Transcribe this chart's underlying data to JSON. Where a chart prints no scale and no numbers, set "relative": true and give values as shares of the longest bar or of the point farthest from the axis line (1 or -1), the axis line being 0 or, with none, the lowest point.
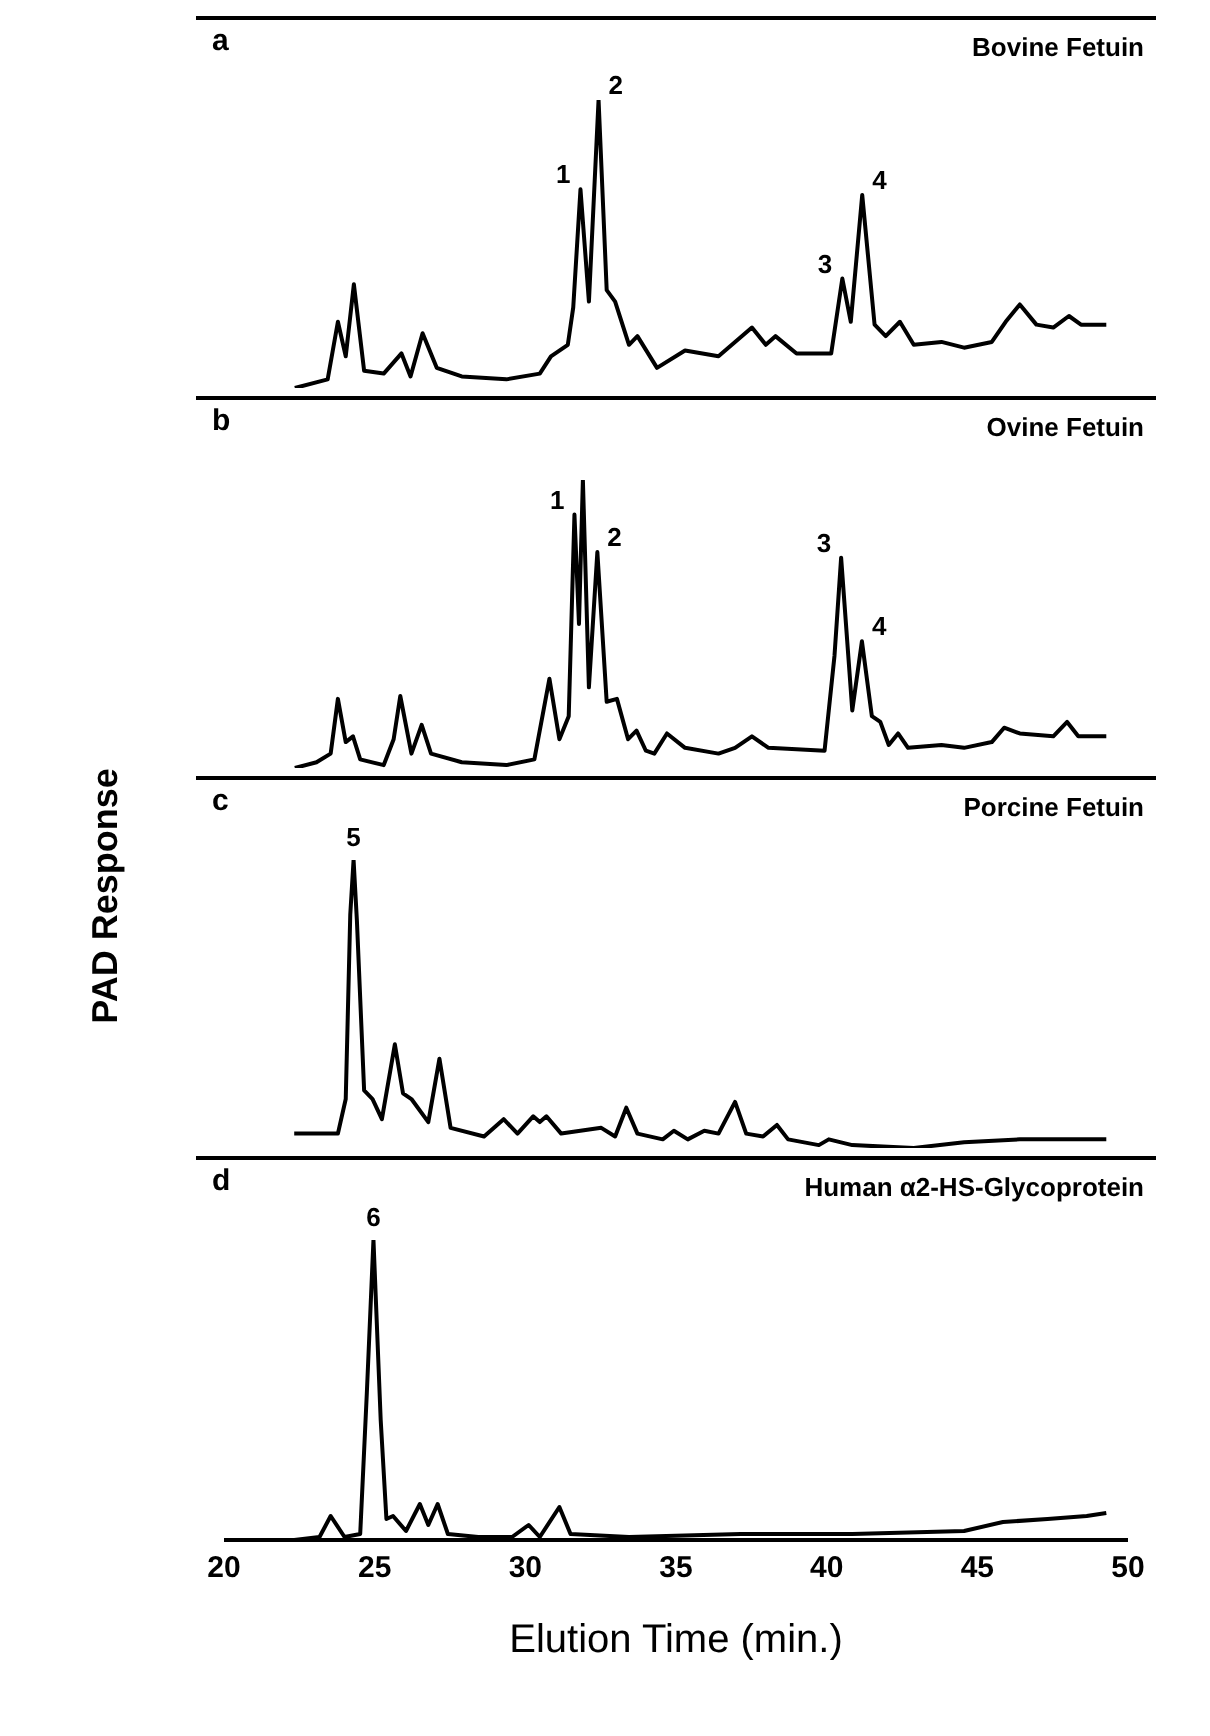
{
  "chart_data": [
    {
      "type": "line",
      "title": "Bovine Fetuin",
      "relative": true,
      "color": "#000000",
      "xlim": [
        20,
        50
      ],
      "tick_labels": false,
      "annotations": [
        "a",
        {
          "text": "1",
          "x": 31.83,
          "y": 0.69
        },
        {
          "text": "2",
          "x": 32.43,
          "y": 1.0
        },
        {
          "text": "3",
          "x": 40.52,
          "y": 0.38
        },
        {
          "text": "4",
          "x": 41.18,
          "y": 0.67
        }
      ],
      "x": [
        22.35,
        23.44,
        23.78,
        24.04,
        24.31,
        24.65,
        25.3,
        25.89,
        26.19,
        26.59,
        27.06,
        27.89,
        29.37,
        30.48,
        30.85,
        31.41,
        31.59,
        31.83,
        32.11,
        32.43,
        32.7,
        32.98,
        33.44,
        33.72,
        34.37,
        35.3,
        36.41,
        37.52,
        37.98,
        38.3,
        39.0,
        40.15,
        40.52,
        40.8,
        41.18,
        41.59,
        41.96,
        42.43,
        42.89,
        43.81,
        44.56,
        45.48,
        45.94,
        46.41,
        46.96,
        47.52,
        48.04,
        48.44,
        49.28
      ],
      "values": [
        0,
        0.03,
        0.23,
        0.11,
        0.36,
        0.06,
        0.05,
        0.12,
        0.04,
        0.19,
        0.07,
        0.04,
        0.03,
        0.05,
        0.11,
        0.15,
        0.28,
        0.69,
        0.3,
        1.0,
        0.34,
        0.3,
        0.15,
        0.18,
        0.07,
        0.13,
        0.11,
        0.21,
        0.15,
        0.18,
        0.12,
        0.12,
        0.38,
        0.23,
        0.67,
        0.22,
        0.18,
        0.23,
        0.15,
        0.16,
        0.14,
        0.16,
        0.23,
        0.29,
        0.22,
        0.21,
        0.25,
        0.22,
        0.22
      ]
    },
    {
      "type": "line",
      "title": "Ovine Fetuin",
      "relative": true,
      "color": "#000000",
      "xlim": [
        20,
        50
      ],
      "tick_labels": false,
      "annotations": [
        "b",
        {
          "text": "1",
          "x": 31.63,
          "y": 0.88
        },
        {
          "text": "2",
          "x": 32.39,
          "y": 0.75
        },
        {
          "text": "3",
          "x": 40.48,
          "y": 0.73
        },
        {
          "text": "4",
          "x": 41.17,
          "y": 0.44
        }
      ],
      "x": [
        22.35,
        23.07,
        23.54,
        23.78,
        24.04,
        24.28,
        24.52,
        25.3,
        25.63,
        25.85,
        26.22,
        26.56,
        26.87,
        27.89,
        29.37,
        30.3,
        30.8,
        31.13,
        31.44,
        31.63,
        31.78,
        31.91,
        32.11,
        32.39,
        32.7,
        33.04,
        33.41,
        33.69,
        34.0,
        34.28,
        34.7,
        35.3,
        36.41,
        36.96,
        37.52,
        38.07,
        39.93,
        40.26,
        40.48,
        40.85,
        41.17,
        41.5,
        41.78,
        42.06,
        42.37,
        42.7,
        43.81,
        44.56,
        45.48,
        45.89,
        46.41,
        47.52,
        47.98,
        48.35,
        49.28
      ],
      "values": [
        0,
        0.02,
        0.05,
        0.24,
        0.09,
        0.11,
        0.03,
        0.01,
        0.1,
        0.25,
        0.05,
        0.15,
        0.05,
        0.02,
        0.01,
        0.03,
        0.31,
        0.1,
        0.18,
        0.88,
        0.5,
        1.0,
        0.28,
        0.75,
        0.23,
        0.24,
        0.1,
        0.13,
        0.06,
        0.05,
        0.12,
        0.07,
        0.05,
        0.07,
        0.11,
        0.07,
        0.06,
        0.39,
        0.73,
        0.2,
        0.44,
        0.18,
        0.16,
        0.08,
        0.12,
        0.07,
        0.08,
        0.07,
        0.09,
        0.14,
        0.12,
        0.11,
        0.16,
        0.11,
        0.11
      ]
    },
    {
      "type": "line",
      "title": "Porcine Fetuin",
      "ylabel": "PAD Response",
      "relative": true,
      "color": "#000000",
      "xlim": [
        20,
        50
      ],
      "tick_labels": false,
      "annotations": [
        "c",
        {
          "text": "5",
          "x": 24.3,
          "y": 1.0
        }
      ],
      "x": [
        22.33,
        23.78,
        24.04,
        24.19,
        24.3,
        24.41,
        24.65,
        24.93,
        25.24,
        25.67,
        25.94,
        26.22,
        26.78,
        27.15,
        27.52,
        28.63,
        29.28,
        29.74,
        30.26,
        30.48,
        30.7,
        31.19,
        32.52,
        32.98,
        33.35,
        33.72,
        34.56,
        34.93,
        35.39,
        35.94,
        36.41,
        36.96,
        37.33,
        37.89,
        38.35,
        38.72,
        39.74,
        40.07,
        40.85,
        42.89,
        44.56,
        46.41,
        48.26,
        49.28
      ],
      "values": [
        0.05,
        0.05,
        0.17,
        0.81,
        1.0,
        0.79,
        0.2,
        0.17,
        0.1,
        0.36,
        0.19,
        0.17,
        0.09,
        0.31,
        0.07,
        0.04,
        0.1,
        0.05,
        0.11,
        0.09,
        0.11,
        0.05,
        0.07,
        0.04,
        0.14,
        0.05,
        0.03,
        0.06,
        0.03,
        0.06,
        0.05,
        0.16,
        0.05,
        0.04,
        0.08,
        0.03,
        0.01,
        0.03,
        0.01,
        0,
        0.02,
        0.03,
        0.03,
        0.03
      ]
    },
    {
      "type": "line",
      "title": "Human α2-HS-Glycoprotein",
      "xlabel": "Elution Time (min.)",
      "relative": true,
      "color": "#000000",
      "xlim": [
        20,
        50
      ],
      "xticks": [
        20,
        25,
        30,
        35,
        40,
        45,
        50
      ],
      "tick_labels": "x",
      "annotations": [
        "d",
        {
          "text": "6",
          "x": 24.96,
          "y": 1.0
        }
      ],
      "x": [
        22.33,
        23.17,
        23.54,
        24.0,
        24.52,
        24.74,
        24.96,
        25.2,
        25.39,
        25.61,
        26.04,
        26.5,
        26.78,
        27.09,
        27.43,
        28.44,
        29.56,
        30.11,
        30.48,
        31.13,
        31.5,
        33.44,
        37.15,
        40.85,
        44.56,
        45.85,
        47.33,
        48.63,
        49.28
      ],
      "values": [
        0,
        0.01,
        0.08,
        0.01,
        0.02,
        0.49,
        1.0,
        0.4,
        0.07,
        0.08,
        0.03,
        0.12,
        0.05,
        0.12,
        0.02,
        0.01,
        0.01,
        0.05,
        0.01,
        0.11,
        0.02,
        0.01,
        0.02,
        0.02,
        0.03,
        0.06,
        0.07,
        0.08,
        0.09
      ]
    }
  ]
}
